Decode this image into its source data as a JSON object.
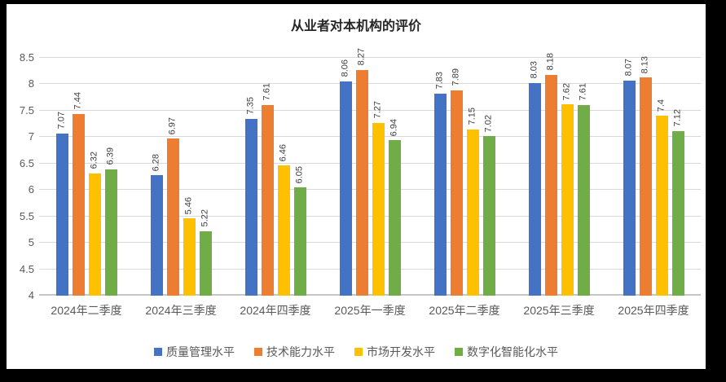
{
  "frame": {
    "border_color": "#000000",
    "canvas_color": "#ffffff"
  },
  "chart_data": {
    "type": "bar",
    "title": "从业者对本机构的评价",
    "categories": [
      "2024年二季度",
      "2024年三季度",
      "2024年四季度",
      "2025年一季度",
      "2025年二季度",
      "2025年三季度",
      "2025年四季度"
    ],
    "series": [
      {
        "name": "质量管理水平",
        "color": "#4472C4",
        "values": [
          7.07,
          6.28,
          7.35,
          8.06,
          7.83,
          8.03,
          8.07
        ]
      },
      {
        "name": "技术能力水平",
        "color": "#ED7D31",
        "values": [
          7.44,
          6.97,
          7.61,
          8.27,
          7.89,
          8.18,
          8.13
        ]
      },
      {
        "name": "市场开发水平",
        "color": "#FFC000",
        "values": [
          6.32,
          5.46,
          6.46,
          7.27,
          7.15,
          7.62,
          7.4
        ]
      },
      {
        "name": "数字化智能化水平",
        "color": "#70AD47",
        "values": [
          6.39,
          5.22,
          6.05,
          6.94,
          7.02,
          7.61,
          7.12
        ]
      }
    ],
    "ylim": [
      4,
      8.5
    ],
    "ytick_step": 0.5,
    "yticks": [
      8.5,
      8,
      7.5,
      7,
      6.5,
      6,
      5.5,
      5,
      4.5,
      4
    ],
    "grid": true,
    "gridline_color": "#D9D9D9",
    "axis_line_color": "#C6C6C6",
    "data_labels": true,
    "legend_position": "bottom"
  }
}
